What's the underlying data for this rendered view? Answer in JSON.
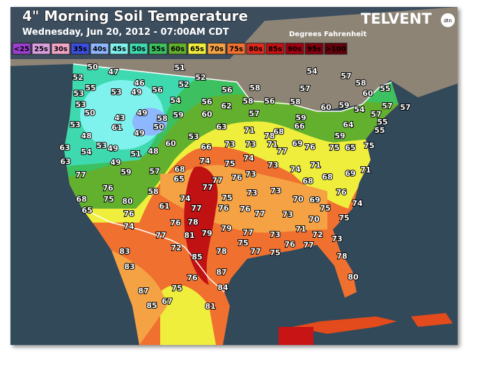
{
  "header": {
    "title": "4\" Morning Soil Temperature",
    "subtitle": "Wednesday, Jun 20, 2012 - 07:00AM CDT",
    "brand": "TELVENT",
    "brand_badge": "dtn",
    "units": "Degrees Fahrenheit"
  },
  "legend": [
    {
      "label": "<25",
      "color": "#9b3fcf"
    },
    {
      "label": "25s",
      "color": "#d9a0e0"
    },
    {
      "label": "30s",
      "color": "#f2a6c6"
    },
    {
      "label": "35s",
      "color": "#3a4fe0"
    },
    {
      "label": "40s",
      "color": "#8db7ff"
    },
    {
      "label": "45s",
      "color": "#7ff2ee"
    },
    {
      "label": "50s",
      "color": "#3fd9b0"
    },
    {
      "label": "55s",
      "color": "#3cc060"
    },
    {
      "label": "60s",
      "color": "#62b02e"
    },
    {
      "label": "65s",
      "color": "#f0ee3c"
    },
    {
      "label": "70s",
      "color": "#f4a244"
    },
    {
      "label": "75s",
      "color": "#f07030"
    },
    {
      "label": "80s",
      "color": "#de2a1c"
    },
    {
      "label": "85s",
      "color": "#c01212"
    },
    {
      "label": "90s",
      "color": "#a00010"
    },
    {
      "label": "95s",
      "color": "#82000e"
    },
    {
      "label": ">100",
      "color": "#64000c"
    }
  ],
  "stations": [
    50,
    47,
    51,
    54,
    52,
    55,
    52,
    52,
    57,
    58,
    53,
    53,
    46,
    49,
    56,
    56,
    58,
    57,
    60,
    55,
    53,
    54,
    56,
    58,
    56,
    58,
    59,
    54,
    57,
    57,
    50,
    43,
    49,
    58,
    59,
    60,
    62,
    57,
    59,
    60,
    57,
    55,
    53,
    61,
    50,
    49,
    63,
    71,
    68,
    66,
    64,
    55,
    48,
    53,
    78,
    59,
    63,
    54,
    53,
    49,
    51,
    48,
    60,
    66,
    73,
    73,
    71,
    77,
    69,
    76,
    75,
    65,
    75,
    63,
    49,
    74,
    75,
    74,
    73,
    74,
    71,
    69,
    71,
    77,
    59,
    57,
    68,
    65,
    77,
    76,
    73,
    68,
    68,
    76,
    77,
    73,
    73,
    76,
    68,
    75,
    80,
    58,
    74,
    75,
    70,
    69,
    74,
    65,
    61,
    77,
    76,
    76,
    77,
    73,
    75,
    76,
    76,
    78,
    79,
    77,
    73,
    71,
    70,
    75,
    74,
    77,
    81,
    79,
    72,
    73,
    78,
    75,
    77,
    76,
    77,
    75,
    83,
    72,
    85,
    78,
    83,
    87,
    80,
    76,
    84,
    87,
    75,
    67,
    85,
    81
  ]
}
